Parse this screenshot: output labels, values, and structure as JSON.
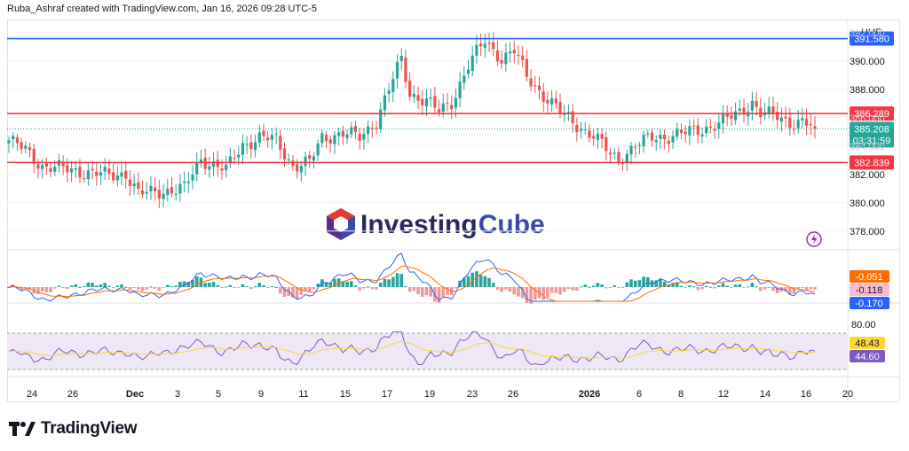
{
  "header": {
    "caption": "Ruba_Ashraf created with TradingView.com, Jan 16, 2026 09:28 UTC-5"
  },
  "currency": "HUF",
  "watermark": {
    "brand_part1": "Investing",
    "brand_part2": "Cube"
  },
  "footer": {
    "logo_text": "TradingView"
  },
  "colors": {
    "up": "#26a69a",
    "down": "#ef5350",
    "blue_line": "#2962ff",
    "red_line": "#f23645",
    "macd": "#2962ff",
    "signal": "#ff6d00",
    "rsi": "#7e57c2",
    "rsi_ma": "#fdd835"
  },
  "chart_data": [
    {
      "type": "candlestick",
      "ylim": [
        376.8,
        392.8
      ],
      "y_ticks": [
        "392.000",
        "390.000",
        "388.000",
        "386.000",
        "384.000",
        "382.000",
        "380.000",
        "378.000"
      ],
      "x_ticks": [
        "24",
        "26",
        "Dec",
        "3",
        "5",
        "9",
        "11",
        "15",
        "17",
        "19",
        "23",
        "26",
        "2026",
        "6",
        "8",
        "12",
        "14",
        "16",
        "20"
      ],
      "hlines": [
        {
          "label": "391.580",
          "value": 391.58,
          "color": "blue"
        },
        {
          "label": "386.289",
          "value": 386.289,
          "color": "red"
        },
        {
          "label": "382.839",
          "value": 382.839,
          "color": "red"
        }
      ],
      "last_price": {
        "label": "385.208",
        "value": 385.208,
        "countdown": "03:31:59"
      },
      "close_anchors": [
        [
          0,
          384.4
        ],
        [
          4,
          383.7
        ],
        [
          8,
          382.6
        ],
        [
          12,
          382.4
        ],
        [
          18,
          382.2
        ],
        [
          24,
          381.9
        ],
        [
          28,
          382.1
        ],
        [
          31,
          380.6
        ],
        [
          36,
          380.8
        ],
        [
          42,
          381.0
        ],
        [
          46,
          383.1
        ],
        [
          52,
          382.3
        ],
        [
          56,
          384.1
        ],
        [
          60,
          384.6
        ],
        [
          64,
          384.4
        ],
        [
          68,
          382.6
        ],
        [
          72,
          382.8
        ],
        [
          75,
          384.6
        ],
        [
          80,
          384.9
        ],
        [
          84,
          384.6
        ],
        [
          88,
          385.8
        ],
        [
          92,
          388.7
        ],
        [
          94,
          390.1
        ],
        [
          96,
          387.7
        ],
        [
          100,
          387.2
        ],
        [
          103,
          386.4
        ],
        [
          106,
          387.1
        ],
        [
          110,
          389.7
        ],
        [
          114,
          391.4
        ],
        [
          118,
          390.2
        ],
        [
          121,
          390.7
        ],
        [
          124,
          388.9
        ],
        [
          128,
          387.6
        ],
        [
          132,
          386.4
        ],
        [
          136,
          385.5
        ],
        [
          140,
          384.7
        ],
        [
          142,
          384.1
        ],
        [
          144,
          383.4
        ],
        [
          146,
          383.1
        ],
        [
          150,
          384.0
        ],
        [
          154,
          384.6
        ],
        [
          158,
          384.7
        ],
        [
          162,
          384.9
        ],
        [
          166,
          385.2
        ],
        [
          170,
          385.6
        ],
        [
          174,
          386.2
        ],
        [
          178,
          387.1
        ],
        [
          180,
          386.3
        ],
        [
          184,
          386.1
        ],
        [
          188,
          385.6
        ],
        [
          190,
          385.7
        ],
        [
          193,
          385.2
        ]
      ]
    },
    {
      "type": "macd",
      "labels": [
        "-0.051",
        "-0.118",
        "-0.170"
      ],
      "values": [
        -0.051,
        -0.118,
        -0.17
      ]
    },
    {
      "type": "rsi",
      "y_ticks": [
        "80.00"
      ],
      "labels": [
        "48.43",
        "44.60"
      ],
      "values": [
        48.43,
        44.6
      ]
    }
  ]
}
